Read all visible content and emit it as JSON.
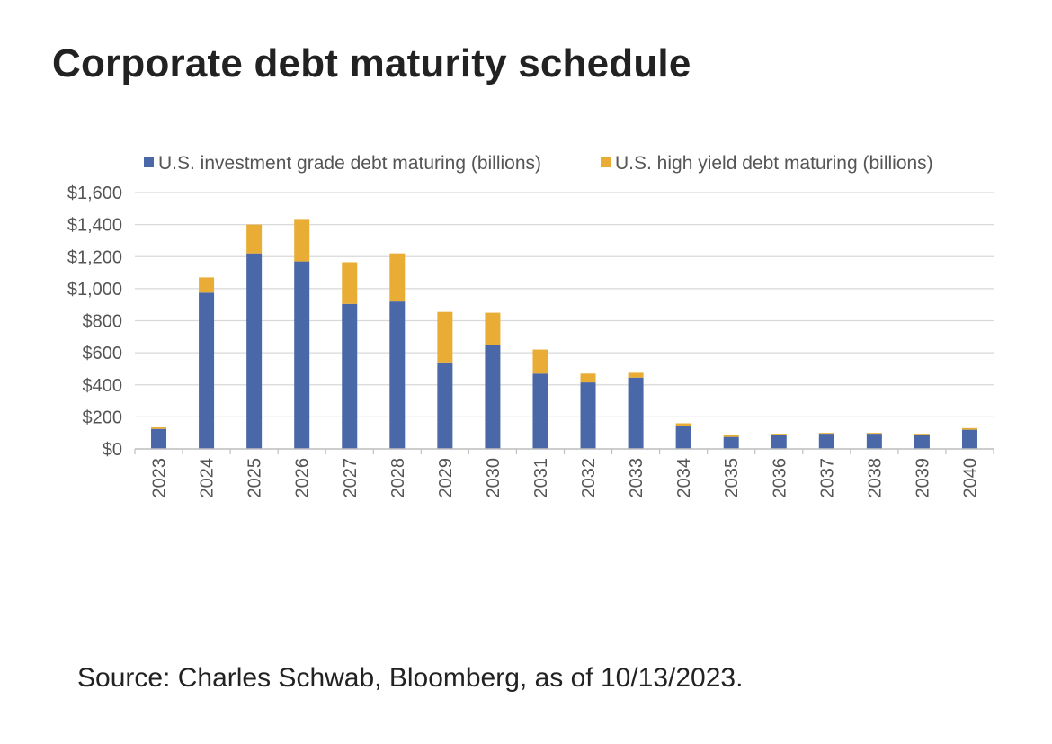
{
  "title": "Corporate debt maturity schedule",
  "source": "Source: Charles Schwab, Bloomberg, as of 10/13/2023.",
  "colors": {
    "investment_grade": "#4a67a8",
    "high_yield": "#e9ad35",
    "grid": "#d9d9d9",
    "axis_text": "#555555"
  },
  "chart_data": {
    "type": "bar",
    "stacked": true,
    "categories": [
      "2023",
      "2024",
      "2025",
      "2026",
      "2027",
      "2028",
      "2029",
      "2030",
      "2031",
      "2032",
      "2033",
      "2034",
      "2035",
      "2036",
      "2037",
      "2038",
      "2039",
      "2040"
    ],
    "series": [
      {
        "name": "U.S. investment grade debt maturing (billions)",
        "values": [
          125,
          975,
          1220,
          1170,
          905,
          920,
          540,
          650,
          470,
          415,
          445,
          145,
          75,
          90,
          95,
          95,
          90,
          120
        ]
      },
      {
        "name": "U.S. high yield debt maturing (billions)",
        "values": [
          10,
          95,
          180,
          265,
          260,
          300,
          315,
          200,
          150,
          55,
          30,
          15,
          15,
          5,
          5,
          5,
          5,
          10
        ]
      }
    ],
    "ylim": [
      0,
      1600
    ],
    "yticks": [
      0,
      200,
      400,
      600,
      800,
      1000,
      1200,
      1400,
      1600
    ],
    "ytick_labels": [
      "$0",
      "$200",
      "$400",
      "$600",
      "$800",
      "$1,000",
      "$1,200",
      "$1,400",
      "$1,600"
    ],
    "grid": true,
    "legend_position": "top"
  }
}
